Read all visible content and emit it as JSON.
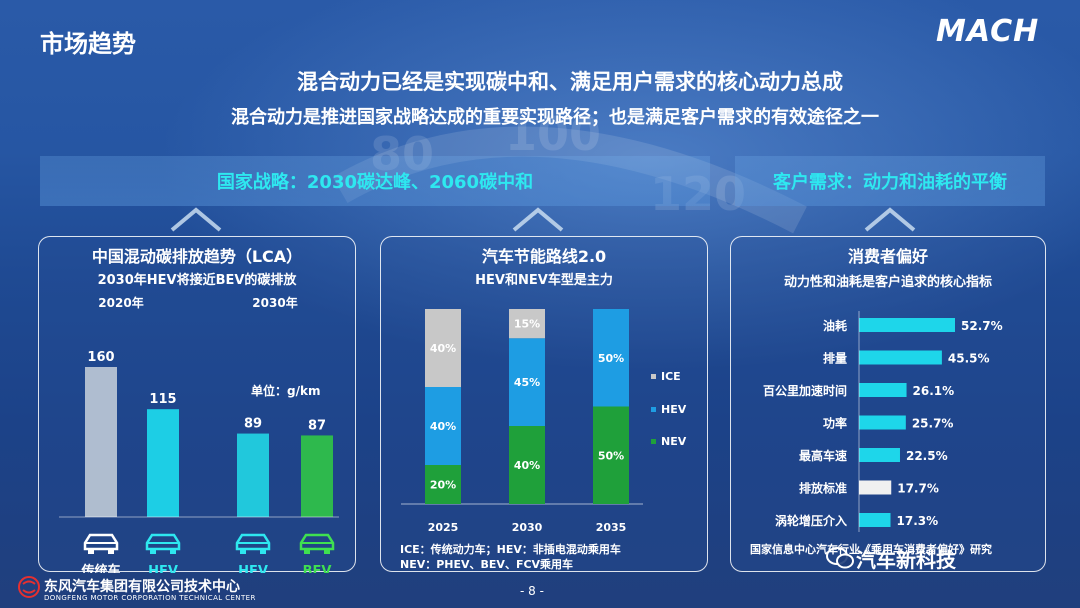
{
  "header": {
    "title": "市场趋势",
    "brand": "MACH",
    "headline1": "混合动力已经是实现碳中和、满足用户需求的核心动力总成",
    "headline2": "混合动力是推进国家战略达成的重要实现路径；也是满足客户需求的有效途径之一"
  },
  "bands": {
    "left": "国家战略：2030碳达峰、2060碳中和",
    "right": "客户需求：动力和油耗的平衡"
  },
  "speedo_labels": [
    "80",
    "100",
    "120"
  ],
  "colors": {
    "cyan": "#2ee8f0",
    "ice": "#c8c8c8",
    "hev": "#1e9de3",
    "nev": "#1fa03a",
    "bev_bar": "#2fc04a",
    "pref_bar": "#1ed6ea",
    "pref_highlight": "#f0f0f0"
  },
  "chart_data": [
    {
      "type": "bar",
      "title": "中国混动碳排放趋势（LCA）",
      "subtitle": "2030年HEV将接近BEV的碳排放",
      "groups": [
        "2020年",
        "2030年"
      ],
      "unit_label": "单位：g/km",
      "bars": [
        {
          "group": "2020年",
          "name": "传统车",
          "value": 160
        },
        {
          "group": "2020年",
          "name": "HEV",
          "value": 115
        },
        {
          "group": "2030年",
          "name": "HEV",
          "value": 89
        },
        {
          "group": "2030年",
          "name": "BEV",
          "value": 87
        }
      ]
    },
    {
      "type": "bar",
      "stacked": true,
      "title": "汽车节能路线2.0",
      "subtitle": "HEV和NEV车型是主力",
      "categories": [
        "2025",
        "2030",
        "2035"
      ],
      "series": [
        {
          "name": "NEV",
          "values": [
            20,
            40,
            50
          ]
        },
        {
          "name": "HEV",
          "values": [
            40,
            45,
            50
          ]
        },
        {
          "name": "ICE",
          "values": [
            40,
            15,
            0
          ]
        }
      ],
      "legend": [
        "ICE",
        "HEV",
        "NEV"
      ],
      "notes": [
        "ICE：传统动力车；HEV：非插电混动乘用车",
        "NEV：PHEV、BEV、FCV乘用车"
      ]
    },
    {
      "type": "bar",
      "orientation": "horizontal",
      "title": "消费者偏好",
      "subtitle": "动力性和油耗是客户追求的核心指标",
      "categories": [
        "油耗",
        "排量",
        "百公里加速时间",
        "功率",
        "最高车速",
        "排放标准",
        "涡轮增压介入"
      ],
      "values": [
        52.7,
        45.5,
        26.1,
        25.7,
        22.5,
        17.7,
        17.3
      ],
      "value_labels": [
        "52.7%",
        "45.5%",
        "26.1%",
        "25.7%",
        "22.5%",
        "17.7%",
        "17.3%"
      ],
      "source": "国家信息中心汽车行业《乘用车消费者偏好》研究"
    }
  ],
  "footer": {
    "company": "东风汽车集团有限公司技术中心",
    "company_en": "DONGFENG MOTOR CORPORATION TECHNICAL CENTER",
    "page": "- 8 -",
    "watermark": "汽车新科技"
  }
}
